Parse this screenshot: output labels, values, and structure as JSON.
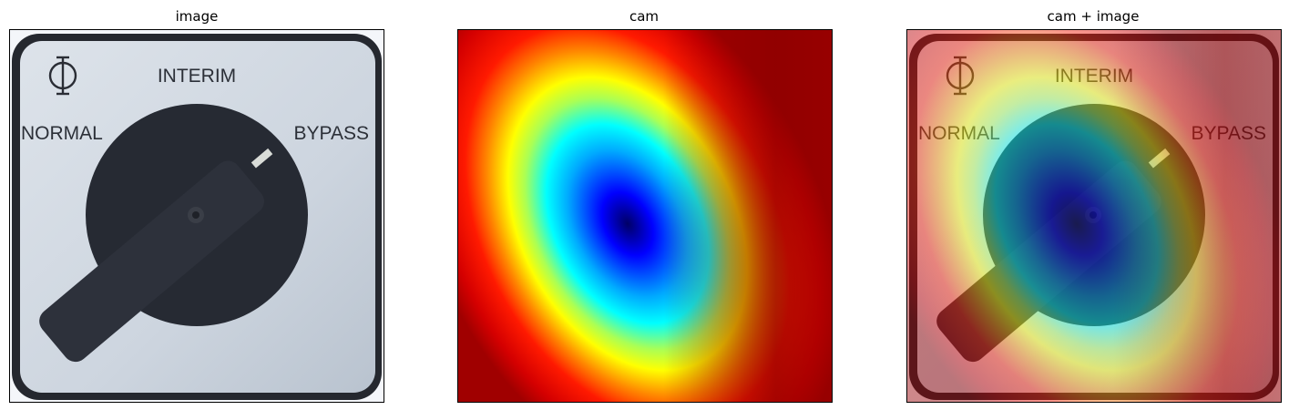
{
  "panels": [
    {
      "title": "image"
    },
    {
      "title": "cam"
    },
    {
      "title": "cam + image"
    }
  ],
  "switch_labels": {
    "top": "INTERIM",
    "left": "NORMAL",
    "right": "BYPASS",
    "symbol": "Φ"
  },
  "icons": [
    "phase-symbol-icon",
    "rotary-switch-knob-icon"
  ],
  "colormap": "jet",
  "colors": {
    "plate": "#cfd6e0",
    "plate_rim": "#25282f",
    "knob": "#262a33",
    "cam_peak": "#00008b",
    "cam_low": "#8b0000"
  }
}
